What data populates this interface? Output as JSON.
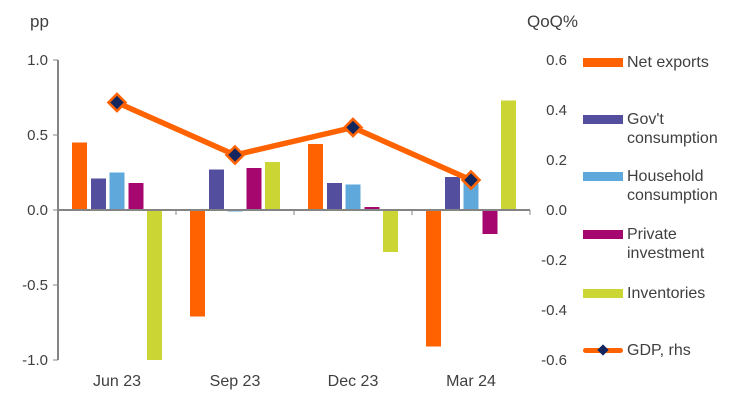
{
  "colors": {
    "net_exports": "#FF6200",
    "govt_consumption": "#534F9E",
    "household_consumption": "#5FA8DC",
    "private_investment": "#A5076E",
    "inventories": "#CBD534",
    "gdp_line": "#FF6200",
    "gdp_marker": "#14265E",
    "axis": "#848484",
    "text": "#3F3F3F"
  },
  "chart_data": {
    "type": "bar",
    "title": "",
    "categories": [
      "Jun 23",
      "Sep 23",
      "Dec 23",
      "Mar 24"
    ],
    "series": [
      {
        "name": "Net exports",
        "axis": "left",
        "color_key": "net_exports",
        "values": [
          0.45,
          -0.71,
          0.44,
          -0.91
        ]
      },
      {
        "name": "Gov't consumption",
        "axis": "left",
        "color_key": "govt_consumption",
        "values": [
          0.21,
          0.27,
          0.18,
          0.22
        ]
      },
      {
        "name": "Household consumption",
        "axis": "left",
        "color_key": "household_consumption",
        "values": [
          0.25,
          -0.01,
          0.17,
          0.19
        ]
      },
      {
        "name": "Private investment",
        "axis": "left",
        "color_key": "private_investment",
        "values": [
          0.18,
          0.28,
          0.02,
          -0.16
        ]
      },
      {
        "name": "Inventories",
        "axis": "left",
        "color_key": "inventories",
        "values": [
          -1.0,
          0.32,
          -0.28,
          0.73
        ]
      }
    ],
    "line_series": {
      "name": "GDP, rhs",
      "type": "line",
      "axis": "right",
      "values": [
        0.43,
        0.22,
        0.33,
        0.12
      ]
    },
    "left_axis": {
      "label": "pp",
      "min": -1.0,
      "max": 1.0,
      "tick_labels": [
        "1.0",
        "0.5",
        "0.0",
        "-0.5",
        "-1.0"
      ]
    },
    "right_axis": {
      "label": "QoQ%",
      "min": -0.6,
      "max": 0.6,
      "tick_labels": [
        "0.6",
        "0.4",
        "0.2",
        "0.0",
        "-0.2",
        "-0.4",
        "-0.6"
      ]
    },
    "grid": "off",
    "legend_position": "right"
  },
  "legend": {
    "items": [
      {
        "label": "Net exports",
        "type": "swatch",
        "color_key": "net_exports"
      },
      {
        "label": "Gov't consumption",
        "type": "swatch",
        "color_key": "govt_consumption"
      },
      {
        "label": "Household consumption",
        "type": "swatch",
        "color_key": "household_consumption"
      },
      {
        "label": "Private investment",
        "type": "swatch",
        "color_key": "private_investment"
      },
      {
        "label": "Inventories",
        "type": "swatch",
        "color_key": "inventories"
      },
      {
        "label": "GDP, rhs",
        "type": "line_marker",
        "color_key": "gdp_line"
      }
    ]
  }
}
